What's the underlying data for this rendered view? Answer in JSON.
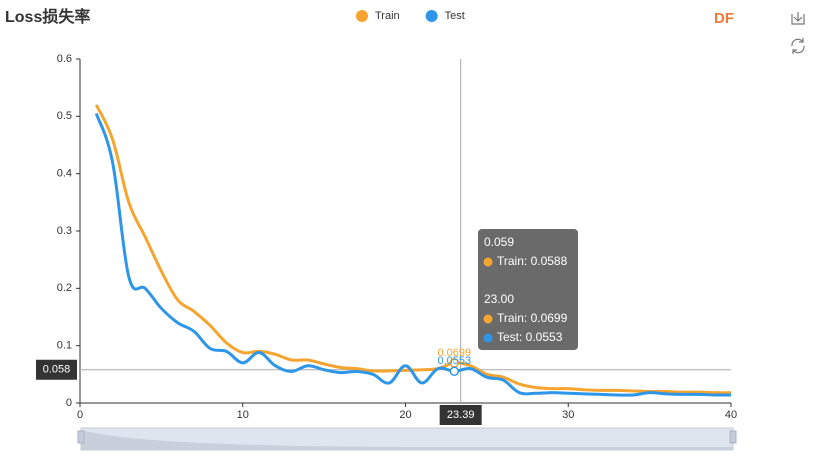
{
  "chart_data": {
    "type": "line",
    "title": "Loss损失率",
    "logo": "DF",
    "x": [
      1,
      2,
      3,
      4,
      5,
      6,
      7,
      8,
      9,
      10,
      11,
      12,
      13,
      14,
      15,
      16,
      17,
      18,
      19,
      20,
      21,
      22,
      23,
      24,
      25,
      26,
      27,
      28,
      29,
      30,
      31,
      32,
      33,
      34,
      35,
      36,
      37,
      38,
      39,
      40
    ],
    "series": [
      {
        "name": "Train",
        "color": "#f5a52f",
        "values": [
          0.52,
          0.46,
          0.35,
          0.29,
          0.23,
          0.18,
          0.16,
          0.135,
          0.105,
          0.088,
          0.09,
          0.085,
          0.075,
          0.075,
          0.068,
          0.062,
          0.06,
          0.056,
          0.056,
          0.057,
          0.058,
          0.06,
          0.0699,
          0.065,
          0.05,
          0.045,
          0.033,
          0.027,
          0.025,
          0.025,
          0.023,
          0.022,
          0.022,
          0.021,
          0.02,
          0.02,
          0.019,
          0.019,
          0.018,
          0.018
        ]
      },
      {
        "name": "Test",
        "color": "#2d96e8",
        "values": [
          0.505,
          0.42,
          0.22,
          0.2,
          0.165,
          0.14,
          0.125,
          0.095,
          0.09,
          0.07,
          0.088,
          0.065,
          0.055,
          0.065,
          0.058,
          0.053,
          0.055,
          0.05,
          0.035,
          0.065,
          0.035,
          0.06,
          0.0553,
          0.06,
          0.045,
          0.04,
          0.018,
          0.017,
          0.018,
          0.017,
          0.016,
          0.015,
          0.014,
          0.014,
          0.018,
          0.016,
          0.015,
          0.015,
          0.014,
          0.014
        ]
      }
    ],
    "point_labels": [
      {
        "series": 0,
        "index": 22,
        "label": "0.0699"
      },
      {
        "series": 1,
        "index": 22,
        "label": "0.0553"
      }
    ],
    "xlim": [
      0,
      40
    ],
    "xticks": [
      0,
      10,
      20,
      30,
      40
    ],
    "ylim": [
      0,
      0.6
    ],
    "yticks": [
      0,
      0.1,
      0.2,
      0.3,
      0.4,
      0.5,
      0.6
    ],
    "axis_pointer": {
      "x": 23.39,
      "y": 0.058
    },
    "tooltip": [
      {
        "title": "0.059",
        "items": [
          {
            "text": "Train: 0.0588",
            "color": "#f5a52f"
          }
        ]
      },
      {
        "title": "23.00",
        "items": [
          {
            "text": "Train: 0.0699",
            "color": "#f5a52f"
          },
          {
            "text": "Test: 0.0553",
            "color": "#2d96e8"
          }
        ]
      }
    ]
  }
}
